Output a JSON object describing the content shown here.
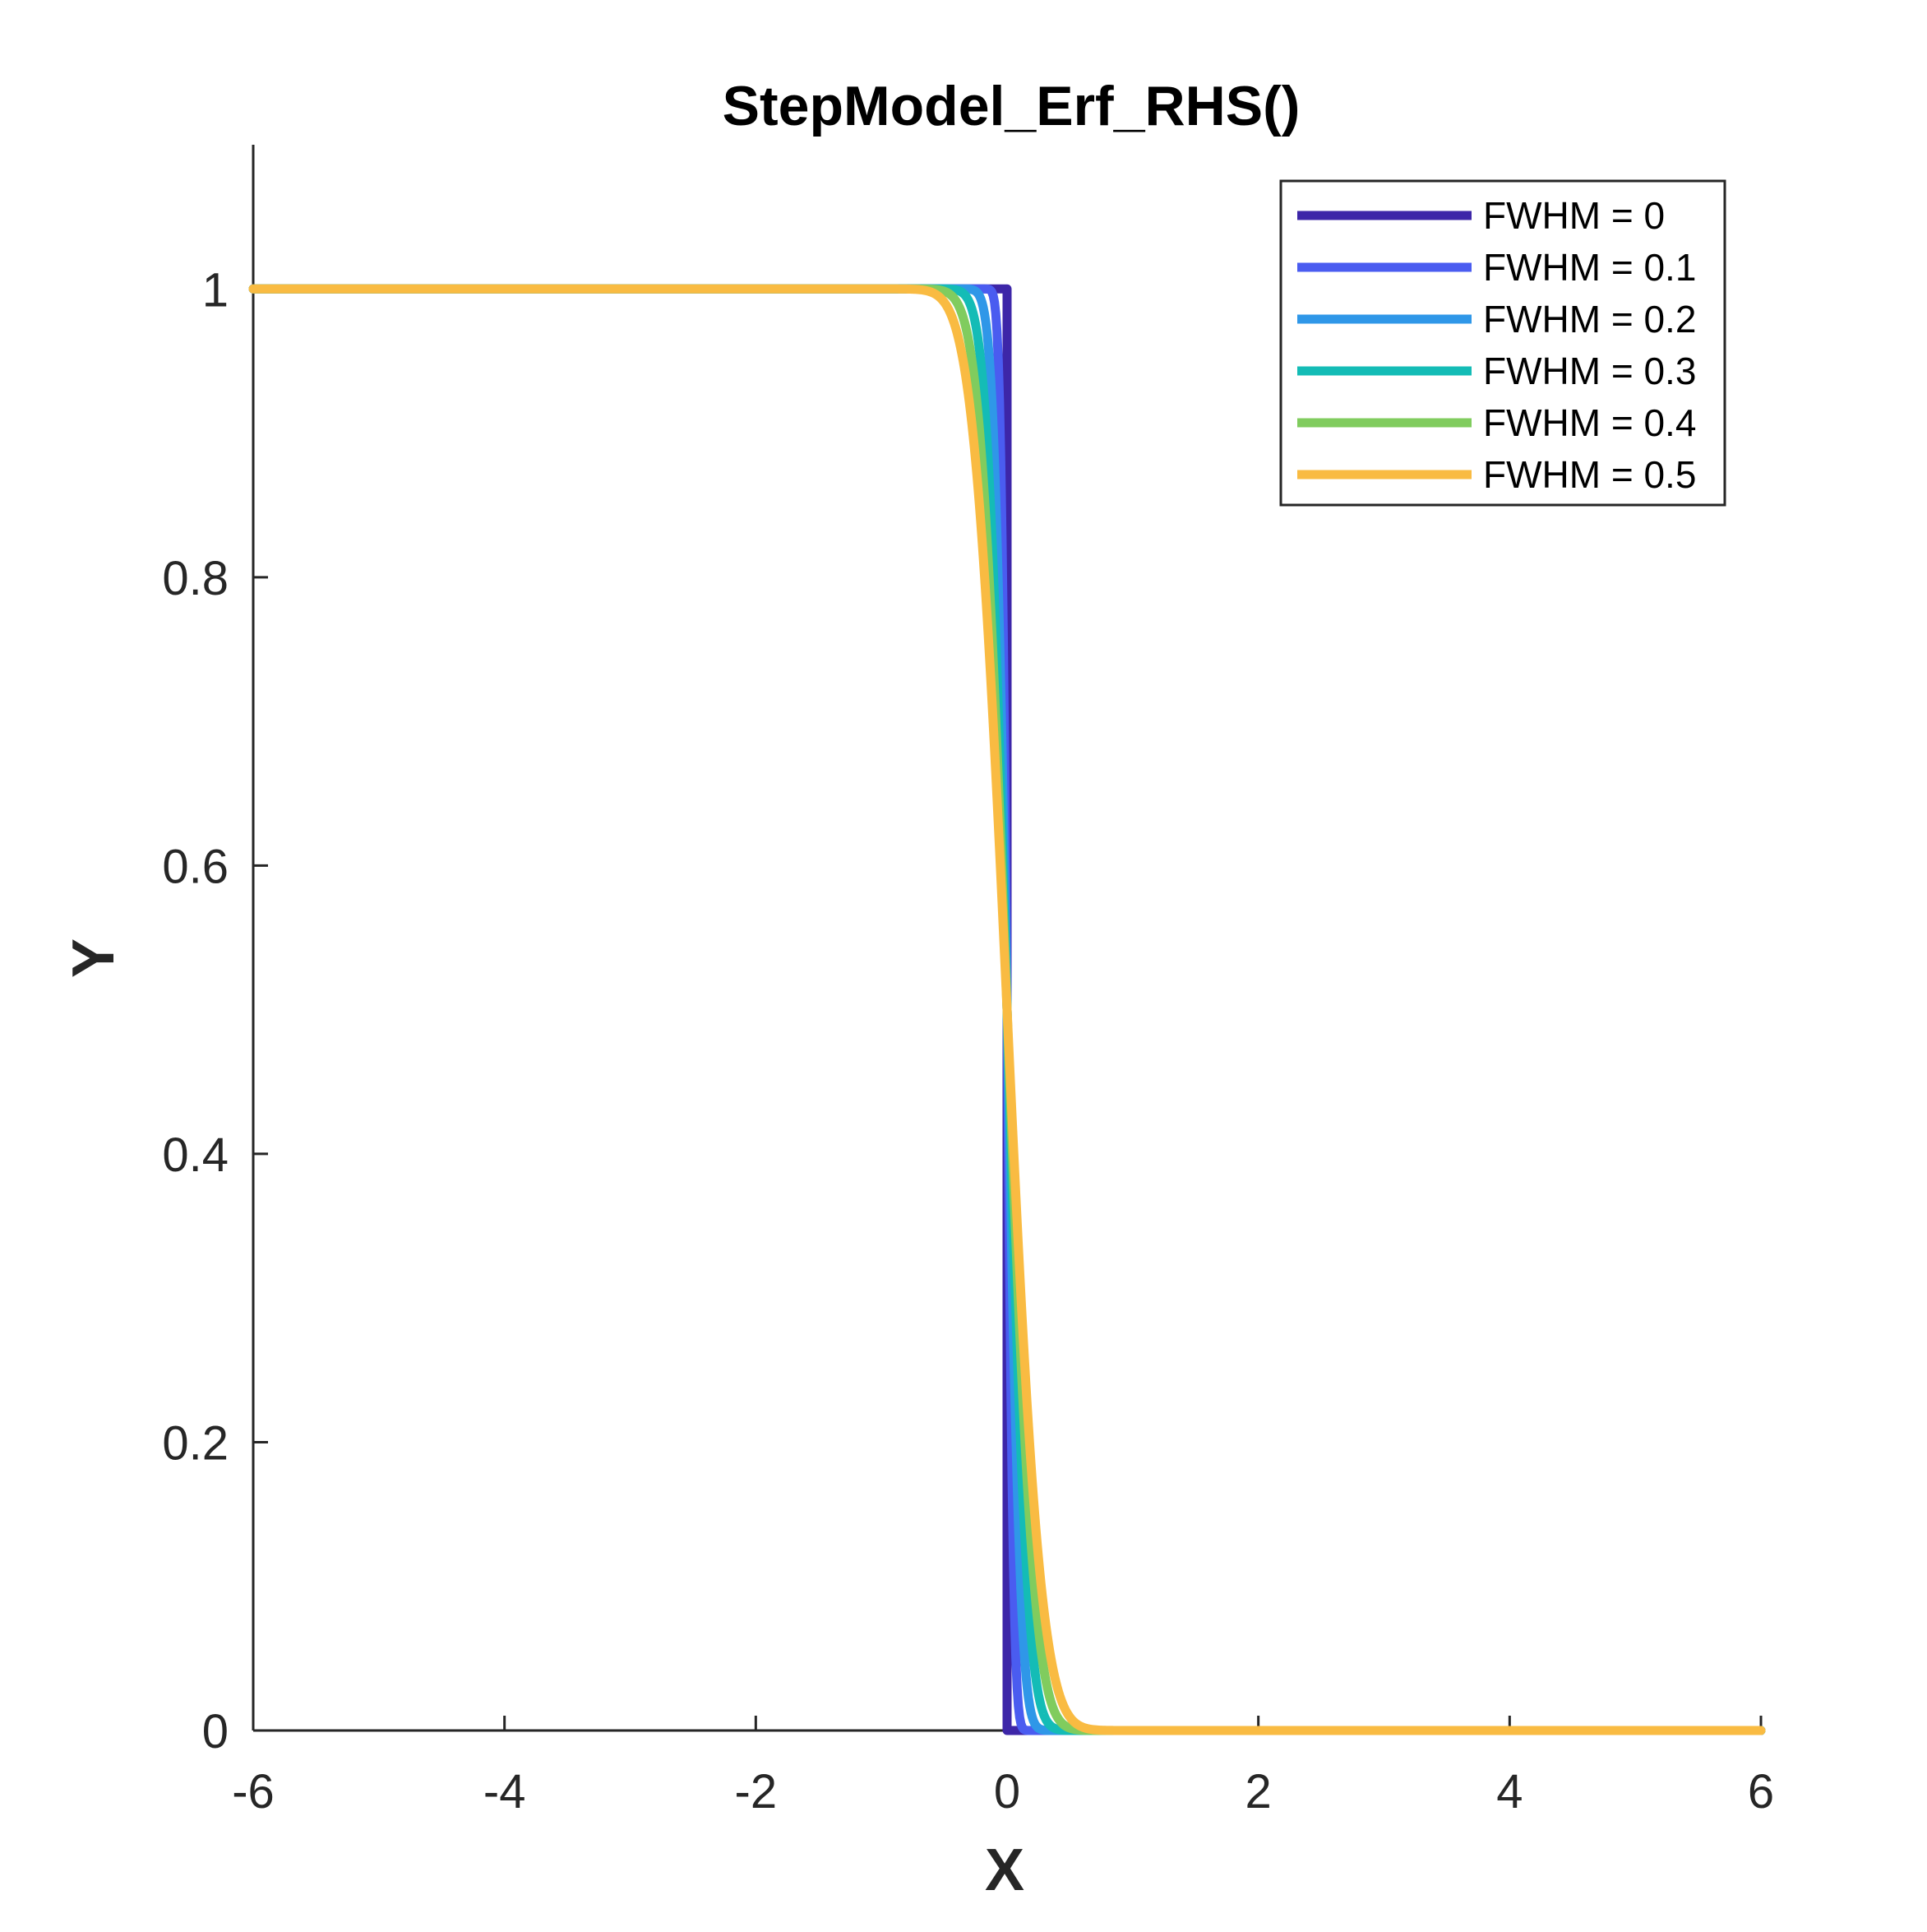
{
  "chart_data": {
    "type": "line",
    "title": "StepModel_Erf_RHS()",
    "xlabel": "X",
    "ylabel": "Y",
    "xlim": [
      -6,
      6
    ],
    "ylim": [
      0,
      1.1
    ],
    "xticks": [
      -6,
      -4,
      -2,
      0,
      2,
      4,
      6
    ],
    "yticks": [
      0,
      0.2,
      0.4,
      0.6,
      0.8,
      1
    ],
    "xtick_labels": [
      "-6",
      "-4",
      "-2",
      "0",
      "2",
      "4",
      "6"
    ],
    "ytick_labels": [
      "0",
      "0.2",
      "0.4",
      "0.6",
      "0.8",
      "1"
    ],
    "grid": false,
    "legend_position": "top-right",
    "model": "0.5 * erfc(x / (sigma * sqrt(2))), sigma = FWHM / (2 * sqrt(2 * ln 2))",
    "series": [
      {
        "name": "FWHM = 0",
        "fwhm": 0,
        "color": "#3d26a8"
      },
      {
        "name": "FWHM = 0.1",
        "fwhm": 0.1,
        "color": "#4a5cf0"
      },
      {
        "name": "FWHM = 0.2",
        "fwhm": 0.2,
        "color": "#2f97e8"
      },
      {
        "name": "FWHM = 0.3",
        "fwhm": 0.3,
        "color": "#14bcb6"
      },
      {
        "name": "FWHM = 0.4",
        "fwhm": 0.4,
        "color": "#80cc5e"
      },
      {
        "name": "FWHM = 0.5",
        "fwhm": 0.5,
        "color": "#f9bb42"
      }
    ]
  }
}
